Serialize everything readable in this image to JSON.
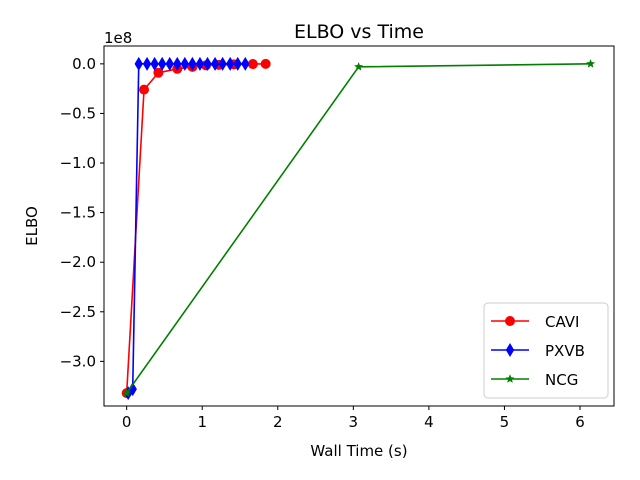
{
  "chart_data": {
    "type": "line",
    "title": "ELBO vs Time",
    "xlabel": "Wall Time (s)",
    "ylabel": "ELBO",
    "y_offset_label": "1e8",
    "xlim": [
      -0.3,
      6.45
    ],
    "ylim": [
      -3.45,
      0.18
    ],
    "y_scale_factor": 100000000,
    "x_ticks": [
      0,
      1,
      2,
      3,
      4,
      5,
      6
    ],
    "x_tick_labels": [
      "0",
      "1",
      "2",
      "3",
      "4",
      "5",
      "6"
    ],
    "y_ticks": [
      0.0,
      -0.5,
      -1.0,
      -1.5,
      -2.0,
      -2.5,
      -3.0
    ],
    "y_tick_labels": [
      "0.0",
      "−0.5",
      "−1.0",
      "−1.5",
      "−2.0",
      "−2.5",
      "−3.0"
    ],
    "grid": false,
    "legend_position": "bottom-right",
    "series": [
      {
        "name": "CAVI",
        "color": "#ff0000",
        "marker": "circle",
        "x": [
          0.0,
          0.23,
          0.42,
          0.67,
          0.87,
          1.05,
          1.22,
          1.42,
          1.67,
          1.84
        ],
        "y": [
          -3.32,
          -0.26,
          -0.09,
          -0.05,
          -0.03,
          -0.015,
          -0.01,
          -0.005,
          -0.002,
          0.0
        ]
      },
      {
        "name": "PXVB",
        "color": "#0000ff",
        "marker": "diamond",
        "x": [
          0.02,
          0.08,
          0.16,
          0.27,
          0.37,
          0.47,
          0.57,
          0.67,
          0.77,
          0.87,
          0.97,
          1.07,
          1.17,
          1.27,
          1.37,
          1.47,
          1.57
        ],
        "y": [
          -3.32,
          -3.28,
          0.0,
          0.0,
          0.0,
          0.0,
          0.0,
          0.0,
          0.0,
          0.0,
          0.0,
          0.0,
          0.0,
          0.0,
          0.0,
          0.0,
          0.0
        ]
      },
      {
        "name": "NCG",
        "color": "#008000",
        "marker": "star",
        "x": [
          0.0,
          3.07,
          6.14
        ],
        "y": [
          -3.32,
          -0.03,
          0.0
        ]
      }
    ]
  }
}
